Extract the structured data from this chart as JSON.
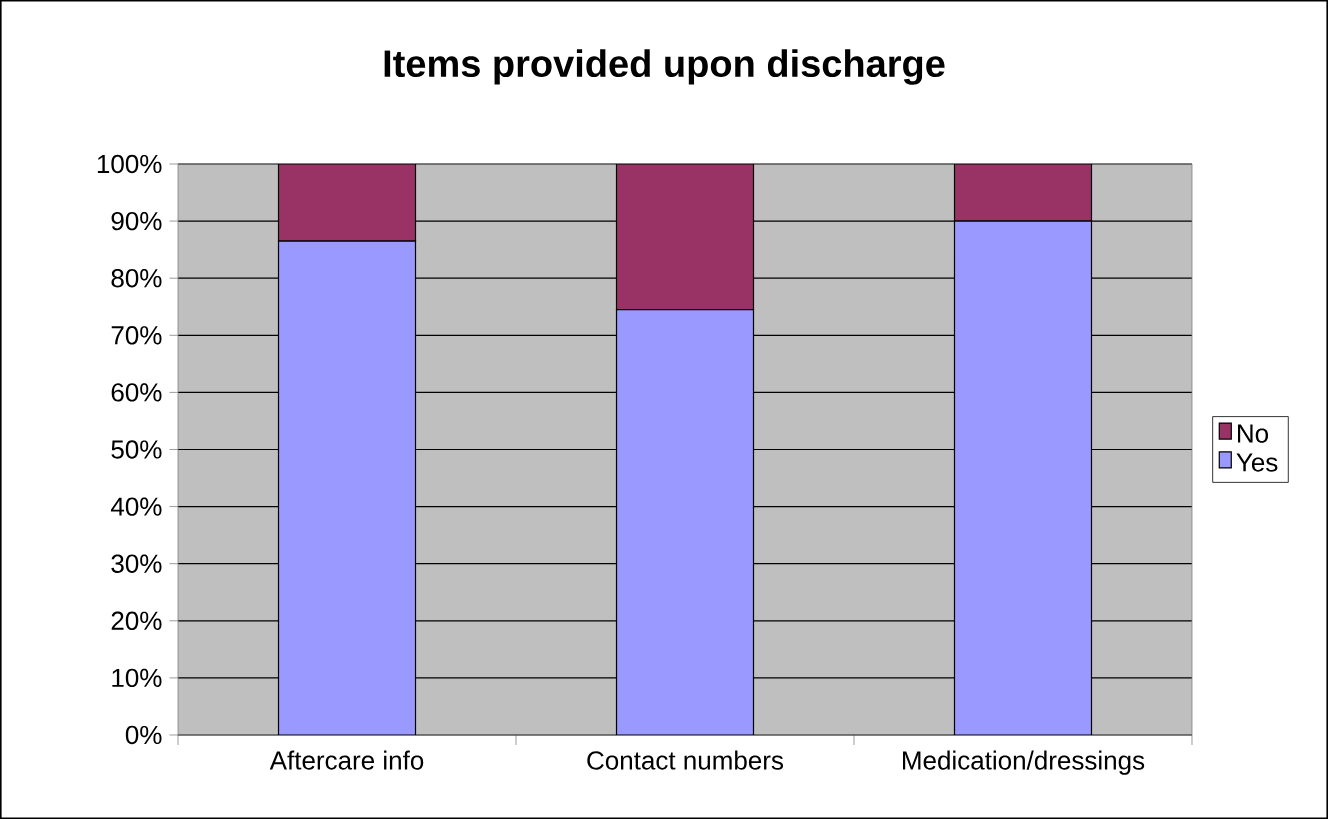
{
  "chart_data": {
    "type": "bar",
    "title": "Items provided upon discharge",
    "stacked": true,
    "categories": [
      "Aftercare info",
      "Contact numbers",
      "Medication/dressings"
    ],
    "series": [
      {
        "name": "Yes",
        "color": "#9999ff",
        "values": [
          86.5,
          74.5,
          90
        ]
      },
      {
        "name": "No",
        "color": "#993366",
        "values": [
          13.5,
          25.5,
          10
        ]
      }
    ],
    "ylim": [
      0,
      100
    ],
    "yticks": [
      {
        "value": 0,
        "label": "0%"
      },
      {
        "value": 10,
        "label": "10%"
      },
      {
        "value": 20,
        "label": "20%"
      },
      {
        "value": 30,
        "label": "30%"
      },
      {
        "value": 40,
        "label": "40%"
      },
      {
        "value": 50,
        "label": "50%"
      },
      {
        "value": 60,
        "label": "60%"
      },
      {
        "value": 70,
        "label": "70%"
      },
      {
        "value": 80,
        "label": "80%"
      },
      {
        "value": 90,
        "label": "90%"
      },
      {
        "value": 100,
        "label": "100%"
      }
    ],
    "grid": "y",
    "legend": "right"
  }
}
